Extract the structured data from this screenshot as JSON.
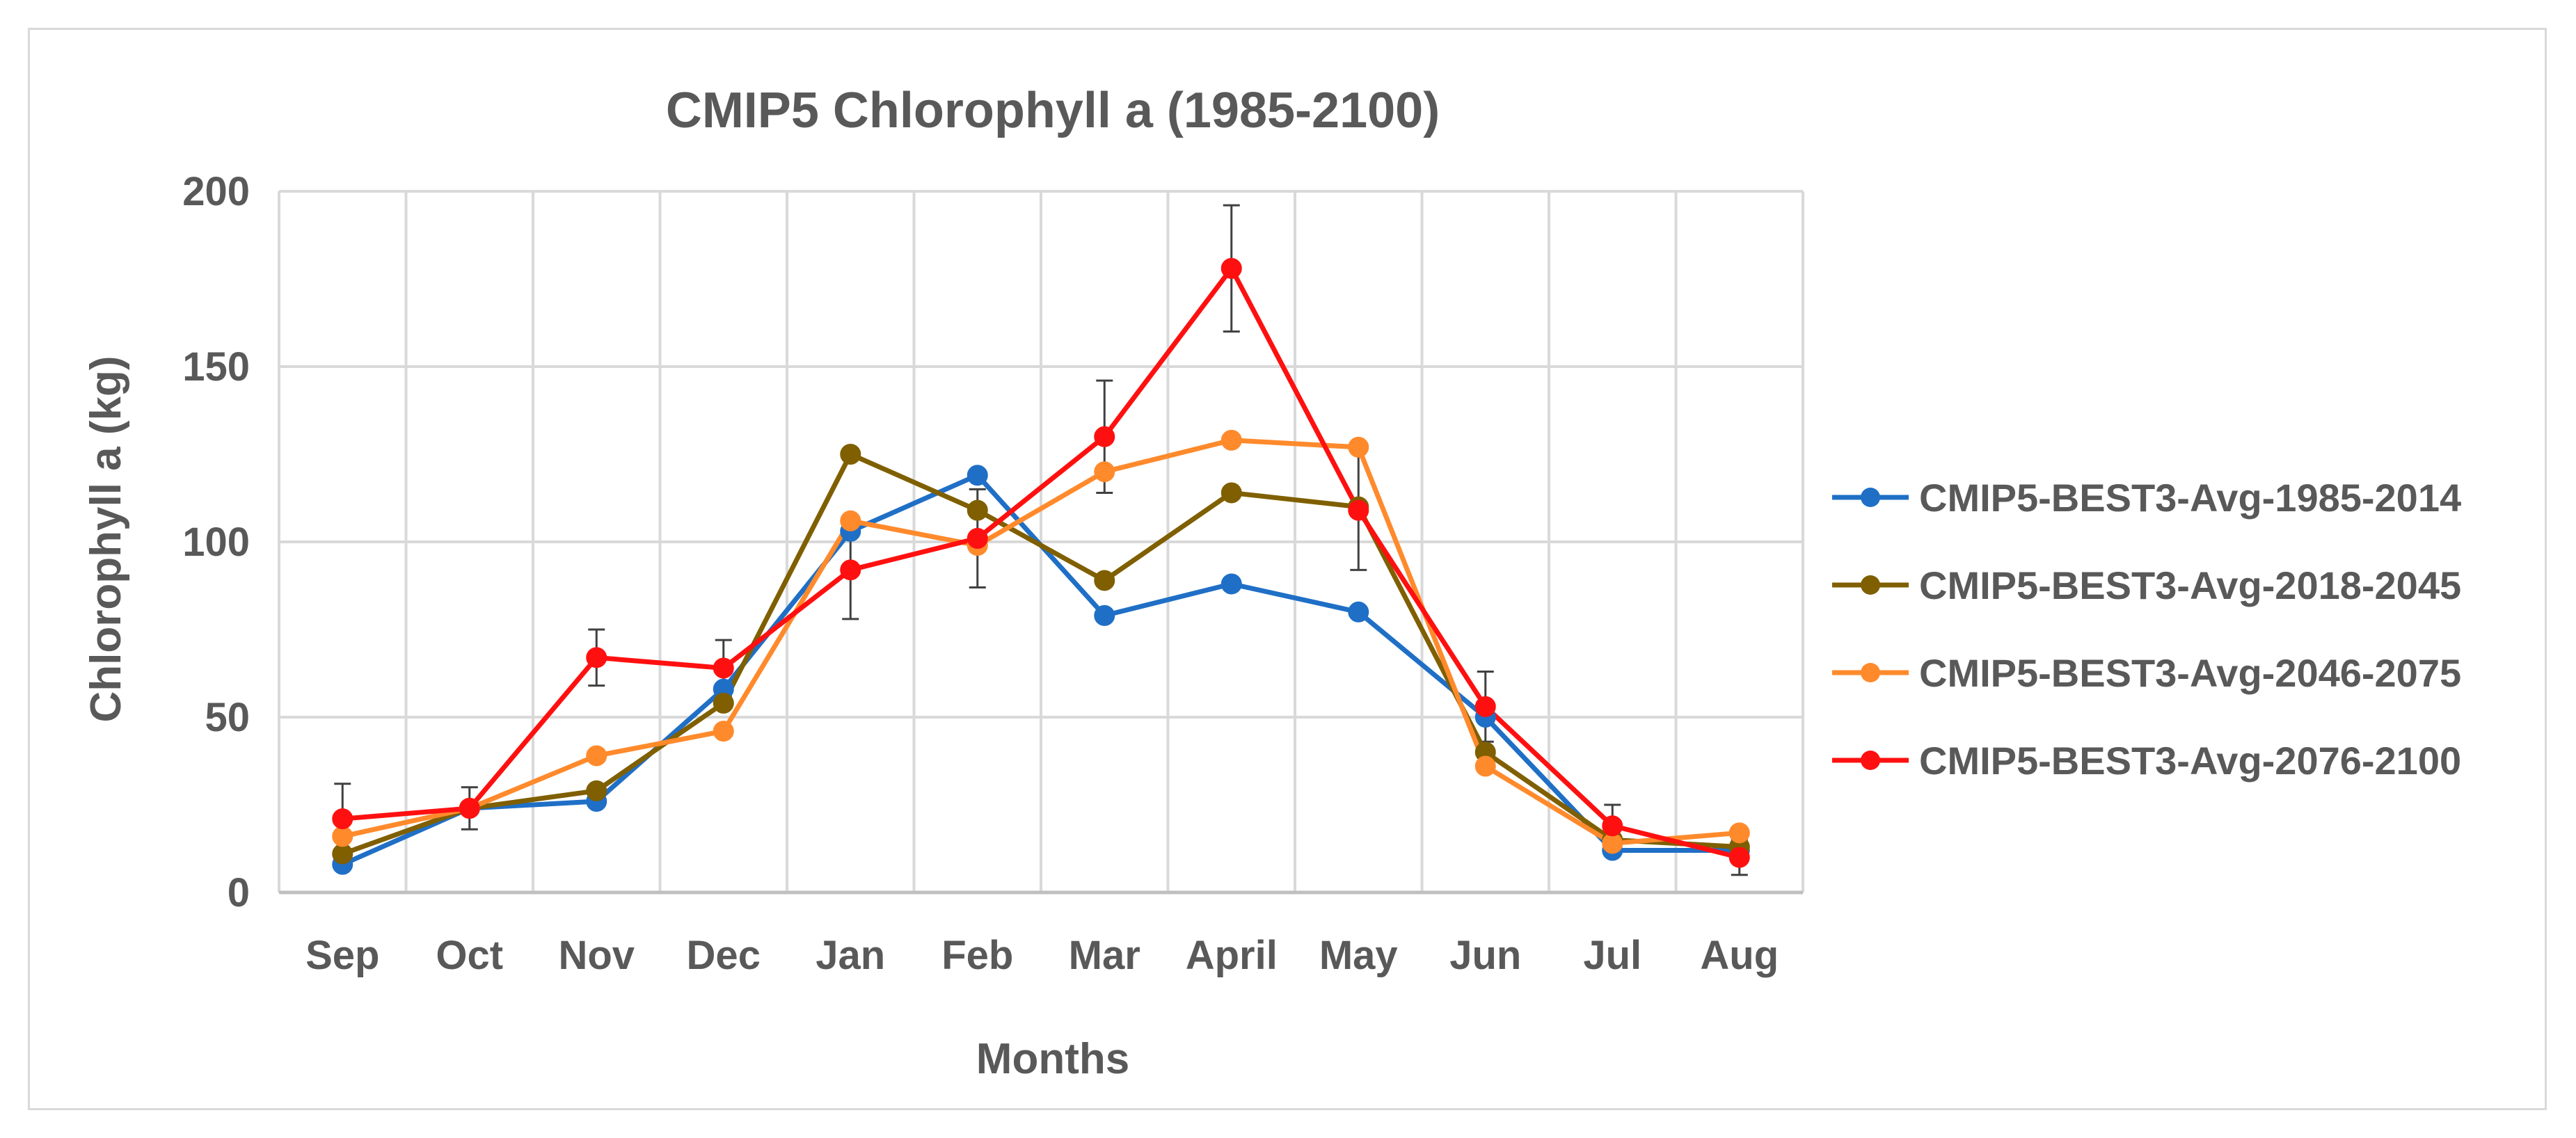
{
  "chart_data": {
    "type": "line",
    "title": "CMIP5 Chlorophyll a (1985-2100)",
    "xlabel": "Months",
    "ylabel": "Chlorophyll a (kg)",
    "ylim": [
      0,
      200
    ],
    "yticks": [
      0,
      50,
      100,
      150,
      200
    ],
    "grid": true,
    "legend_position": "right",
    "categories": [
      "Sep",
      "Oct",
      "Nov",
      "Dec",
      "Jan",
      "Feb",
      "Mar",
      "April",
      "May",
      "Jun",
      "Jul",
      "Aug"
    ],
    "series": [
      {
        "name": "CMIP5-BEST3-Avg-1985-2014",
        "color": "#1f6fc6",
        "values": [
          8,
          24,
          26,
          58,
          103,
          119,
          79,
          88,
          80,
          50,
          12,
          12
        ],
        "error": [
          0,
          0,
          0,
          0,
          0,
          0,
          0,
          0,
          0,
          0,
          0,
          0
        ]
      },
      {
        "name": "CMIP5-BEST3-Avg-2018-2045",
        "color": "#7f5f00",
        "values": [
          11,
          24,
          29,
          54,
          125,
          109,
          89,
          114,
          110,
          40,
          15,
          13
        ],
        "error": [
          0,
          0,
          0,
          0,
          0,
          0,
          0,
          0,
          0,
          0,
          0,
          0
        ]
      },
      {
        "name": "CMIP5-BEST3-Avg-2046-2075",
        "color": "#ff8a2c",
        "values": [
          16,
          24,
          39,
          46,
          106,
          99,
          120,
          129,
          127,
          36,
          14,
          17
        ],
        "error": [
          0,
          0,
          0,
          0,
          0,
          0,
          0,
          0,
          0,
          0,
          0,
          0
        ]
      },
      {
        "name": "CMIP5-BEST3-Avg-2076-2100",
        "color": "#ff1010",
        "values": [
          21,
          24,
          67,
          64,
          92,
          101,
          130,
          178,
          109,
          53,
          19,
          10
        ],
        "error": [
          10,
          6,
          8,
          8,
          14,
          14,
          16,
          18,
          17,
          10,
          6,
          5
        ]
      }
    ]
  }
}
